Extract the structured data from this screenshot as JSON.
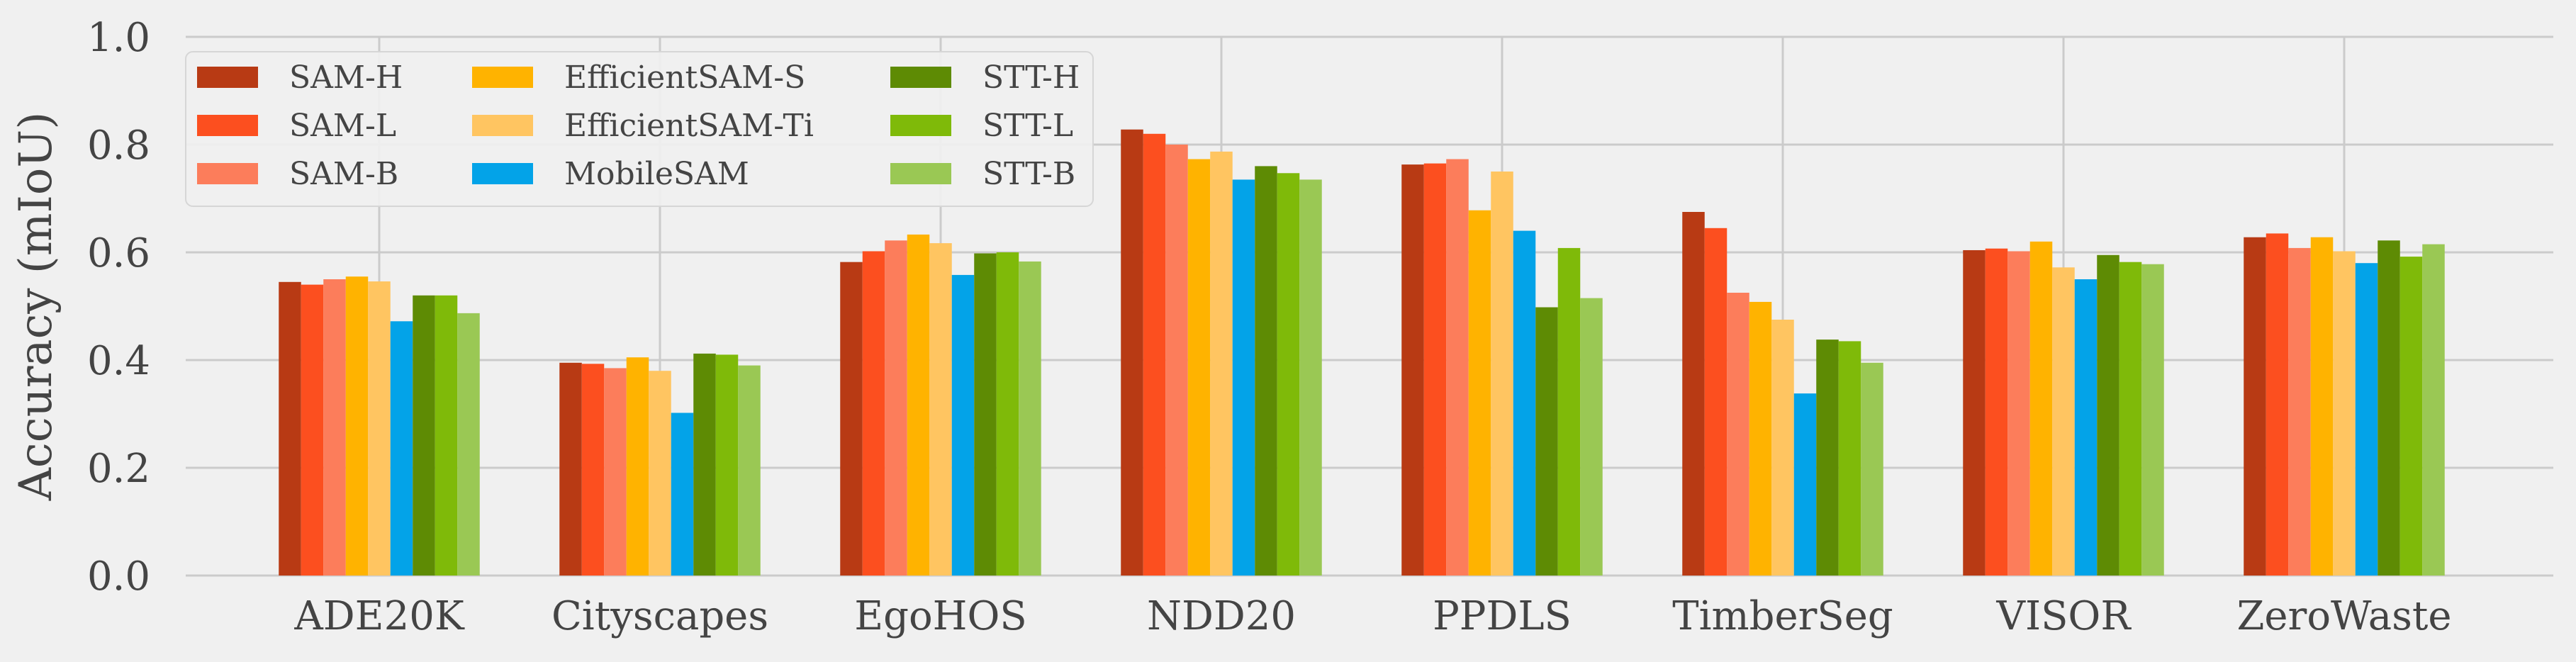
{
  "chart_data": {
    "type": "bar",
    "title": "",
    "xlabel": "",
    "ylabel": "Accuracy (mIoU)",
    "ylim": [
      0,
      1.0
    ],
    "yticks": [
      "0.0",
      "0.2",
      "0.4",
      "0.6",
      "0.8",
      "1.0"
    ],
    "grid": true,
    "legend_position": "top-left",
    "categories": [
      "ADE20K",
      "Cityscapes",
      "EgoHOS",
      "NDD20",
      "PPDLS",
      "TimberSeg",
      "VISOR",
      "ZeroWaste"
    ],
    "series": [
      {
        "name": "SAM-H",
        "color": "#b83a14",
        "values": [
          0.545,
          0.395,
          0.582,
          0.828,
          0.763,
          0.675,
          0.604,
          0.628
        ]
      },
      {
        "name": "SAM-L",
        "color": "#fc4f1f",
        "values": [
          0.54,
          0.393,
          0.602,
          0.82,
          0.765,
          0.645,
          0.607,
          0.635
        ]
      },
      {
        "name": "SAM-B",
        "color": "#fc7d5b",
        "values": [
          0.55,
          0.385,
          0.622,
          0.8,
          0.773,
          0.525,
          0.602,
          0.608
        ]
      },
      {
        "name": "EfficientSAM-S",
        "color": "#ffb300",
        "values": [
          0.555,
          0.405,
          0.633,
          0.773,
          0.678,
          0.508,
          0.62,
          0.628
        ]
      },
      {
        "name": "EfficientSAM-Ti",
        "color": "#ffc561",
        "values": [
          0.546,
          0.38,
          0.617,
          0.787,
          0.75,
          0.475,
          0.572,
          0.602
        ]
      },
      {
        "name": "MobileSAM",
        "color": "#03a3e8",
        "values": [
          0.472,
          0.302,
          0.558,
          0.735,
          0.64,
          0.338,
          0.55,
          0.58
        ]
      },
      {
        "name": "STT-H",
        "color": "#5e8b04",
        "values": [
          0.52,
          0.412,
          0.598,
          0.76,
          0.498,
          0.438,
          0.595,
          0.622
        ]
      },
      {
        "name": "STT-L",
        "color": "#7fba09",
        "values": [
          0.52,
          0.41,
          0.6,
          0.747,
          0.608,
          0.435,
          0.582,
          0.592
        ]
      },
      {
        "name": "STT-B",
        "color": "#9ac854",
        "values": [
          0.487,
          0.39,
          0.583,
          0.735,
          0.515,
          0.395,
          0.578,
          0.615
        ]
      }
    ]
  }
}
